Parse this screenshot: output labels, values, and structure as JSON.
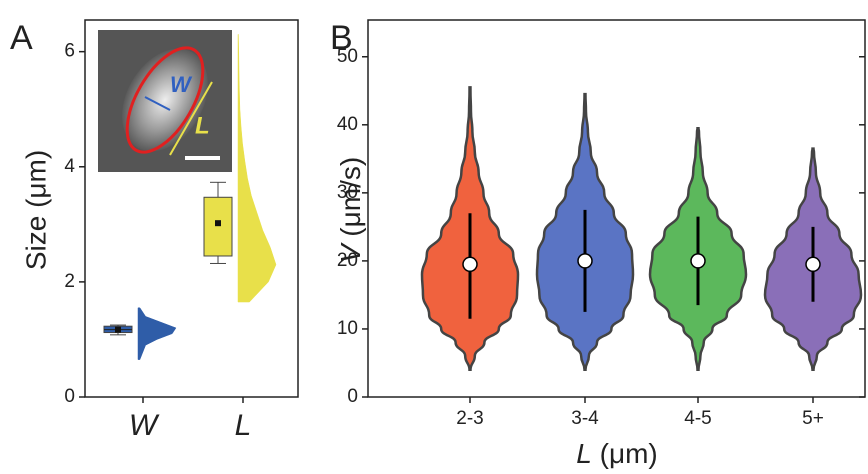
{
  "chart_data": [
    {
      "type": "box",
      "panel": "A",
      "ylabel": "Size (μm)",
      "categories": [
        "W",
        "L"
      ],
      "ylim": [
        0,
        6.55
      ],
      "yticks": [
        0,
        2,
        4,
        6
      ],
      "annotations": [
        "W",
        "L"
      ],
      "series": [
        {
          "color": "#2f5da8",
          "whisker_low": 1.08,
          "q1": 1.12,
          "median": 1.17,
          "q3": 1.23,
          "whisker_high": 1.25,
          "mean": 1.17,
          "density_y": [
            0.65,
            0.9,
            1.0,
            1.1,
            1.2,
            1.3,
            1.4,
            1.55
          ],
          "density": [
            0.05,
            0.2,
            0.5,
            0.9,
            1.0,
            0.6,
            0.2,
            0.05
          ]
        },
        {
          "color": "#e8e04a",
          "whisker_low": 2.32,
          "q1": 2.45,
          "q3": 3.47,
          "whisker_high": 3.73,
          "mean": 3.02,
          "density_y": [
            1.65,
            2.0,
            2.3,
            2.6,
            2.9,
            3.2,
            3.5,
            3.8,
            4.1,
            4.4,
            4.7,
            5.0,
            5.5,
            6.0,
            6.3
          ],
          "density": [
            0.3,
            0.8,
            1.0,
            0.85,
            0.65,
            0.5,
            0.35,
            0.25,
            0.18,
            0.12,
            0.08,
            0.05,
            0.03,
            0.02,
            0.01
          ]
        }
      ]
    },
    {
      "type": "violin",
      "panel": "B",
      "ylabel_symbol": "V",
      "ylabel": "(μm/s)",
      "xlabel_symbol": "L",
      "xlabel": "(μm)",
      "categories": [
        "2-3",
        "3-4",
        "4-5",
        "5+"
      ],
      "ylim": [
        0,
        55.4
      ],
      "yticks": [
        0,
        10,
        20,
        30,
        40,
        50
      ],
      "density_y": [
        4,
        6,
        8,
        10,
        12,
        15,
        18,
        21,
        24,
        27,
        30,
        33,
        36,
        39,
        42,
        45
      ],
      "series": [
        {
          "color": "#f0623e",
          "min": 4,
          "max": 45.5,
          "median": 19.5,
          "whisker_low": 11.5,
          "whisker_high": 27,
          "density": [
            0.02,
            0.1,
            0.3,
            0.6,
            0.85,
            0.98,
            1.0,
            0.9,
            0.6,
            0.4,
            0.28,
            0.18,
            0.1,
            0.05,
            0.02,
            0.01
          ]
        },
        {
          "color": "#5a74c4",
          "min": 4,
          "max": 44.5,
          "median": 20,
          "whisker_low": 12.5,
          "whisker_high": 27.5,
          "density": [
            0.02,
            0.08,
            0.25,
            0.55,
            0.8,
            0.95,
            1.0,
            0.98,
            0.85,
            0.6,
            0.4,
            0.25,
            0.12,
            0.06,
            0.02,
            null
          ]
        },
        {
          "color": "#5cb85c",
          "min": 4,
          "max": 39.5,
          "median": 20,
          "whisker_low": 13.5,
          "whisker_high": 26.5,
          "density": [
            0.02,
            0.05,
            0.12,
            0.3,
            0.6,
            0.9,
            1.0,
            0.95,
            0.7,
            0.4,
            0.2,
            0.1,
            0.05,
            0.02,
            null,
            null
          ]
        },
        {
          "color": "#8a6fb8",
          "min": 4,
          "max": 36.5,
          "median": 19.5,
          "whisker_low": 14,
          "whisker_high": 25,
          "density": [
            0.02,
            0.08,
            0.3,
            0.6,
            0.85,
            1.0,
            0.95,
            0.8,
            0.55,
            0.3,
            0.15,
            0.06,
            0.02,
            null,
            null,
            null
          ]
        }
      ]
    }
  ]
}
